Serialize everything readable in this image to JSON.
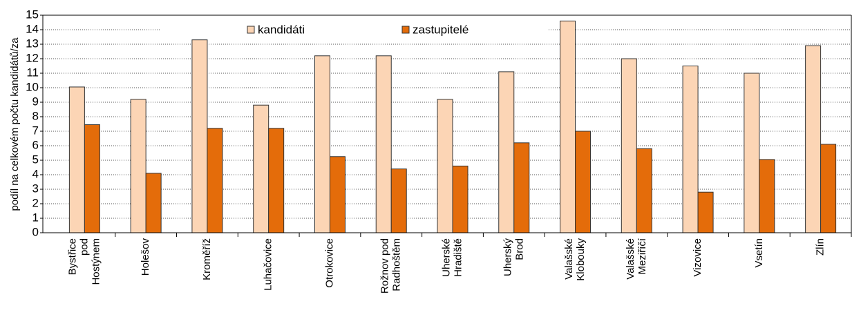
{
  "chart_data": {
    "type": "bar",
    "ylabel": "podíl na celkovém počtu kandidátů/za",
    "categories": [
      "Bystřice\npod\nHostýnem",
      "Holešov",
      "Kroměříž",
      "Luhačovice",
      "Otrokovice",
      "Rožnov pod\nRadhoštěm",
      "Uherské\nHradiště",
      "Uherský\nBrod",
      "Valašské\nKlobouky",
      "Valašské\nMeziříčí",
      "Vizovice",
      "Vsetín",
      "Zlín"
    ],
    "series": [
      {
        "name": "kandidáti",
        "color": "#fcd5b5",
        "values": [
          10.05,
          9.2,
          13.3,
          8.8,
          12.2,
          12.2,
          9.2,
          11.1,
          14.6,
          12.0,
          11.5,
          11.0,
          12.9
        ]
      },
      {
        "name": "zastupitelé",
        "color": "#e46c0a",
        "values": [
          7.45,
          4.1,
          7.2,
          7.2,
          5.25,
          4.4,
          4.6,
          6.2,
          7.0,
          5.8,
          2.8,
          5.05,
          6.1
        ]
      }
    ],
    "ylim": [
      0,
      15
    ],
    "yticks": [
      0,
      1,
      2,
      3,
      4,
      5,
      6,
      7,
      8,
      9,
      10,
      11,
      12,
      13,
      14,
      15
    ],
    "grid": true,
    "legend": "top"
  }
}
